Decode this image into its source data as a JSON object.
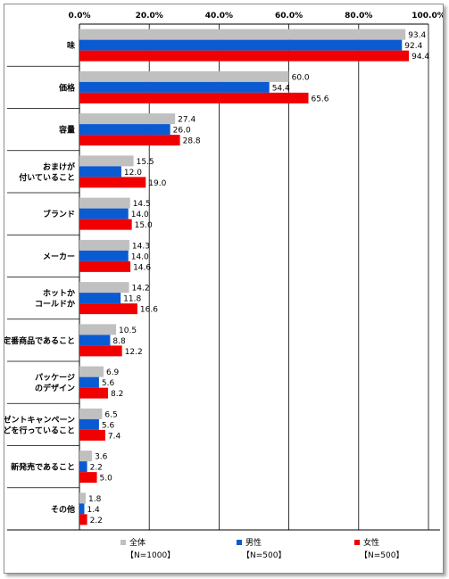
{
  "chart_data": {
    "type": "bar",
    "orientation": "horizontal",
    "title": "",
    "xlabel": "",
    "ylabel": "",
    "xlim": [
      0,
      100
    ],
    "x_ticks": [
      "0.0%",
      "20.0%",
      "40.0%",
      "60.0%",
      "80.0%",
      "100.0%"
    ],
    "grid": true,
    "legend_position": "bottom",
    "categories": [
      [
        "味"
      ],
      [
        "価格"
      ],
      [
        "容量"
      ],
      [
        "おまけが",
        "付いていること"
      ],
      [
        "ブランド"
      ],
      [
        "メーカー"
      ],
      [
        "ホットか",
        "コールドか"
      ],
      [
        "定番商品であること"
      ],
      [
        "パッケージ",
        "のデザイン"
      ],
      [
        "プレゼントキャンペーン",
        "などを行っていること"
      ],
      [
        "新発売であること"
      ],
      [
        "その他"
      ]
    ],
    "series": [
      {
        "name": "全体",
        "n": "【N=1000】",
        "color": "#c0c0c0",
        "values": [
          93.4,
          60.0,
          27.4,
          15.5,
          14.5,
          14.3,
          14.2,
          10.5,
          6.9,
          6.5,
          3.6,
          1.8
        ],
        "labels": [
          "93.4",
          "60.0",
          "27.4",
          "15.5",
          "14.5",
          "14.3",
          "14.2",
          "10.5",
          "6.9",
          "6.5",
          "3.6",
          "1.8"
        ]
      },
      {
        "name": "男性",
        "n": "【N=500】",
        "color": "#0a5ad2",
        "values": [
          92.4,
          54.4,
          26.0,
          12.0,
          14.0,
          14.0,
          11.8,
          8.8,
          5.6,
          5.6,
          2.2,
          1.4
        ],
        "labels": [
          "92.4",
          "54.4",
          "26.0",
          "12.0",
          "14.0",
          "14.0",
          "11.8",
          "8.8",
          "5.6",
          "5.6",
          "2.2",
          "1.4"
        ]
      },
      {
        "name": "女性",
        "n": "【N=500】",
        "color": "#f00000",
        "values": [
          94.4,
          65.6,
          28.8,
          19.0,
          15.0,
          14.6,
          16.6,
          12.2,
          8.2,
          7.4,
          5.0,
          2.2
        ],
        "labels": [
          "94.4",
          "65.6",
          "28.8",
          "19.0",
          "15.0",
          "14.6",
          "16.6",
          "12.2",
          "8.2",
          "7.4",
          "5.0",
          "2.2"
        ]
      }
    ]
  }
}
